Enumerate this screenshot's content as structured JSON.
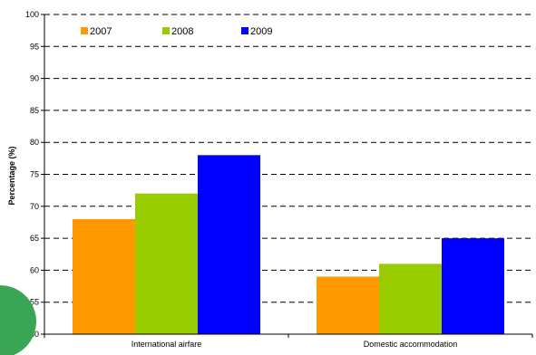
{
  "chart_data": {
    "type": "bar",
    "categories": [
      "International airfare",
      "Domestic accommodation"
    ],
    "series": [
      {
        "name": "2007",
        "values": [
          68,
          59
        ],
        "color": "#ff9900"
      },
      {
        "name": "2008",
        "values": [
          72,
          61
        ],
        "color": "#99cc00"
      },
      {
        "name": "2009",
        "values": [
          78,
          65
        ],
        "color": "#0000ff"
      }
    ],
    "ylabel": "Percentage (%)",
    "ylim": [
      50,
      100
    ],
    "yticks": [
      50,
      55,
      60,
      65,
      70,
      75,
      80,
      85,
      90,
      95,
      100
    ],
    "grid": true,
    "legend": "top-left"
  },
  "decoration": {
    "badge_color": "#3aa655"
  }
}
